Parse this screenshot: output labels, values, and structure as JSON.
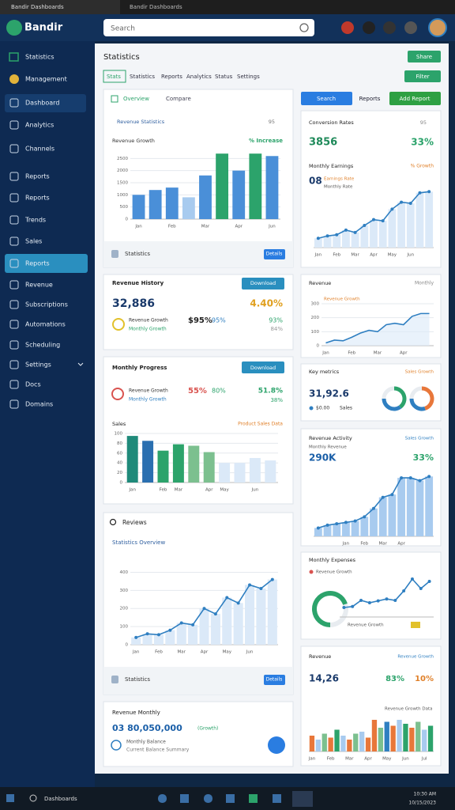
{
  "browser": {
    "tabs": [
      "Bandir Dashboards",
      "Bandir Dashboards"
    ]
  },
  "header": {
    "logo": "Bandir",
    "search": "Search"
  },
  "sidebar": {
    "items": [
      "Statistics",
      "Management",
      "Dashboard",
      "Analytics",
      "Channels",
      "Reports",
      "Reports",
      "Trends",
      "Sales",
      "Reports",
      "Revenue",
      "Subscriptions",
      "Automations",
      "Scheduling",
      "Settings",
      "Docs",
      "Domains"
    ]
  },
  "main": {
    "title": "Statistics",
    "share": "Share",
    "filter": "Filter",
    "tabs": [
      "Stats",
      "Statistics",
      "Reports",
      "Analytics",
      "Status",
      "Settings"
    ],
    "search": "Search",
    "reports": "Reports",
    "add_report": "Add Report"
  },
  "revenue": {
    "tabs": [
      "Overview",
      "Compare"
    ],
    "heading": "Revenue Statistics",
    "heading_value": "95",
    "chart_title": "Revenue Growth",
    "chart_change": "% Increase",
    "chart": {
      "values": [
        1000,
        1200,
        1300,
        900,
        1800,
        2700,
        2000,
        2700,
        2600
      ],
      "colors": [
        "#4a8fd8",
        "#4a8fd8",
        "#4a8fd8",
        "#a8cbef",
        "#4a8fd8",
        "#2ca36b",
        "#4a8fd8",
        "#2ca36b",
        "#4a8fd8"
      ],
      "ylim": [
        0,
        3000
      ],
      "yticks": [
        0,
        500,
        1000,
        1500,
        2000,
        2500
      ],
      "categories": [
        "Jan",
        null,
        "Feb",
        null,
        "Mar",
        null,
        "Apr",
        null,
        "Jun"
      ]
    },
    "footer": "Statistics",
    "button": "Details"
  },
  "history": {
    "title": "Revenue History",
    "button": "Download",
    "total": "32,886",
    "change": "4.40%",
    "label": "Revenue Growth",
    "sublabel": "Monthly Growth",
    "amount": "$95%",
    "rate": "95%",
    "target": "93%",
    "target_sub": "84%"
  },
  "progress": {
    "title": "Monthly Progress",
    "button": "Download",
    "label": "Revenue Growth",
    "sublabel": "Monthly Growth",
    "amount": "55%",
    "rate": "80%",
    "target": "51.8%",
    "target_sub": "38%",
    "chart_title": "Sales",
    "chart_note": "Product Sales Data",
    "chart": {
      "values": [
        95,
        85,
        65,
        78,
        75,
        62,
        40,
        40,
        50,
        45
      ],
      "colors": [
        "#1f8a7a",
        "#2a6fb0",
        "#2ca36b",
        "#2ca36b",
        "#7cc08f",
        "#7cc08f",
        "#dbe9f8",
        "#dbe9f8",
        "#dbe9f8",
        "#dbe9f8"
      ],
      "ylim": [
        0,
        100
      ],
      "yticks": [
        0,
        20,
        40,
        60,
        80,
        100
      ],
      "categories": [
        "Jan",
        null,
        "Feb",
        "Mar",
        null,
        "Apr",
        "May",
        null,
        "Jun",
        null
      ]
    }
  },
  "reviews": {
    "title": "Reviews",
    "subtitle": "Statistics Overview",
    "chart": {
      "values": [
        40,
        60,
        55,
        80,
        120,
        110,
        200,
        170,
        260,
        230,
        330,
        310,
        360
      ],
      "ylim": [
        0,
        450
      ],
      "yticks": [
        0,
        100,
        200,
        300,
        400
      ],
      "categories": [
        "Jan",
        null,
        "Feb",
        null,
        "Mar",
        null,
        "Apr",
        null,
        "May",
        null,
        "Jun",
        null,
        null
      ]
    },
    "footer": "Statistics",
    "button": "Details"
  },
  "monthly": {
    "title": "Revenue Monthly",
    "total": "03 80,050,000",
    "note": "(Growth)",
    "line1": "Monthly Balance",
    "line2": "Current Balance Summary"
  },
  "conversion": {
    "title": "Conversion Rates",
    "period": "95",
    "total": "3856",
    "change": "33%",
    "subtitle": "Monthly Earnings",
    "subtitle_change": "% Growth",
    "count": "08",
    "line1": "Earnings Rate",
    "line2": "Monthly Rate",
    "chart": {
      "values": [
        0.8,
        1,
        1.1,
        1.5,
        1.3,
        1.9,
        2.4,
        2.3,
        3.3,
        3.9,
        3.8,
        4.7,
        4.8
      ],
      "ylim": [
        0,
        5.5
      ],
      "categories": [
        "Jan",
        null,
        "Feb",
        null,
        "Mar",
        null,
        "Apr",
        null,
        "May",
        null,
        "Jun",
        null,
        null
      ]
    }
  },
  "revenue_line": {
    "title": "Revenue",
    "period": "Monthly",
    "legend": "Revenue Growth",
    "chart": {
      "values": [
        20,
        40,
        35,
        60,
        90,
        110,
        100,
        150,
        160,
        150,
        210,
        230,
        230
      ],
      "ylim": [
        0,
        300
      ],
      "yticks": [
        0,
        100,
        200,
        300
      ],
      "categories": [
        "Jan",
        null,
        null,
        "Feb",
        null,
        null,
        "Mar",
        null,
        null,
        "Apr",
        null,
        null,
        null
      ]
    }
  },
  "metrics": {
    "title": "Key metrics",
    "badge": "Sales Growth",
    "total": "31,92.6",
    "legend": [
      "$0.00",
      "Sales"
    ],
    "donuts": [
      {
        "values": [
          40,
          35,
          25
        ],
        "colors": [
          "#2ca36b",
          "#2f7fc1",
          "#e8ecf0"
        ]
      },
      {
        "values": [
          45,
          30,
          25
        ],
        "colors": [
          "#e8773a",
          "#2f7fc1",
          "#e8ecf0"
        ]
      }
    ]
  },
  "activity": {
    "title": "Revenue Activity",
    "badge": "Sales Growth",
    "subtitle": "Monthly Revenue",
    "total": "290K",
    "change": "33%",
    "chart": {
      "values": [
        30,
        40,
        45,
        50,
        55,
        70,
        100,
        140,
        150,
        210,
        210,
        200,
        215
      ],
      "ylim": [
        0,
        250
      ],
      "categories": [
        null,
        null,
        null,
        "Jan",
        null,
        "Feb",
        null,
        "Mar",
        null,
        "Apr",
        null,
        null,
        null
      ]
    }
  },
  "expenses": {
    "title": "Monthly Expenses",
    "legend": "Revenue Growth",
    "gauge": 70,
    "gauge_lim": [
      0,
      100
    ],
    "note": "Revenue Growth",
    "chart": {
      "values": [
        20,
        22,
        35,
        30,
        34,
        38,
        35,
        55,
        80,
        60,
        75
      ],
      "ylim": [
        0,
        100
      ]
    }
  },
  "revenue_bars": {
    "title": "Revenue",
    "badge": "Revenue Growth",
    "total": "14,26",
    "rate": "83%",
    "change": "10%",
    "note": "Revenue Growth Data",
    "chart": {
      "values": [
        40,
        30,
        45,
        35,
        55,
        40,
        30,
        45,
        50,
        35,
        80,
        60,
        75,
        65,
        80,
        70,
        60,
        75,
        55,
        65
      ],
      "colors": [
        "#e8773a",
        "#a8cbef",
        "#7cc08f",
        "#e8773a",
        "#2ca36b",
        "#a8cbef",
        "#e8773a",
        "#7cc08f",
        "#a8cbef",
        "#e8773a",
        "#e8773a",
        "#7cc08f",
        "#2f7fc1",
        "#e8773a",
        "#a8cbef",
        "#2ca36b",
        "#e8773a",
        "#7cc08f",
        "#a8cbef",
        "#2ca36b"
      ],
      "ylim": [
        0,
        100
      ],
      "categories": [
        "Jan",
        null,
        null,
        "Feb",
        null,
        null,
        "Mar",
        null,
        null,
        "Apr",
        null,
        null,
        "May",
        null,
        null,
        "Jun",
        null,
        null,
        "Jul",
        null
      ]
    }
  },
  "taskbar": {
    "search": "Dashboards",
    "time": "10:30 AM",
    "date": "10/15/2023"
  }
}
